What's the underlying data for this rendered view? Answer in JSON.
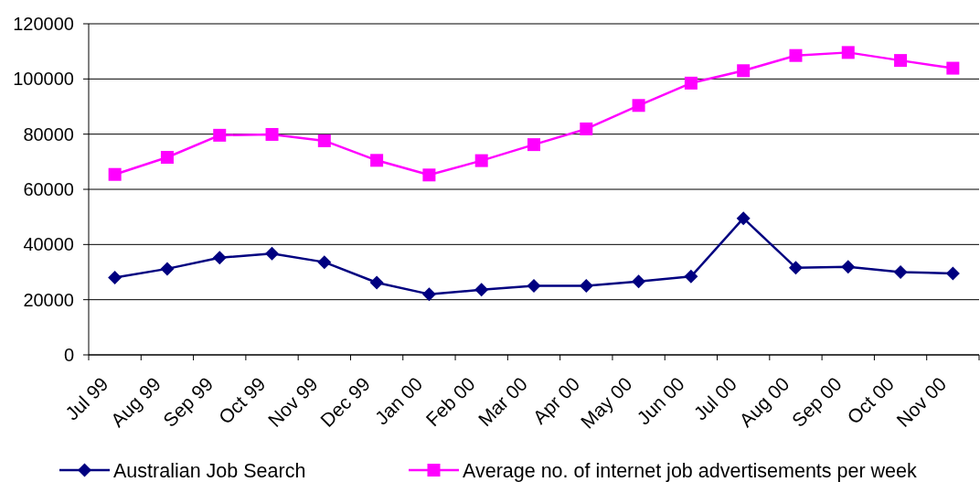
{
  "chart_data": {
    "type": "line",
    "categories": [
      "Jul 99",
      "Aug 99",
      "Sep 99",
      "Oct 99",
      "Nov 99",
      "Dec 99",
      "Jan 00",
      "Feb 00",
      "Mar 00",
      "Apr 00",
      "May 00",
      "Jun 00",
      "Jul 00",
      "Aug 00",
      "Sep 00",
      "Oct 00",
      "Nov 00"
    ],
    "series": [
      {
        "name": "Australian Job Search",
        "color": "#000080",
        "marker": "diamond",
        "values": [
          28000,
          31200,
          35200,
          36700,
          33600,
          26200,
          22000,
          23600,
          25000,
          25000,
          26600,
          28400,
          49500,
          31600,
          31900,
          30000,
          29500
        ]
      },
      {
        "name": "Average no. of internet job advertisements per week",
        "color": "#ff00ff",
        "marker": "square",
        "values": [
          65400,
          71600,
          79600,
          79900,
          77600,
          70500,
          65200,
          70400,
          76200,
          81900,
          90400,
          98500,
          103000,
          108500,
          109600,
          106700,
          103900
        ]
      }
    ],
    "ylim": [
      0,
      120000
    ],
    "yticks": [
      0,
      20000,
      40000,
      60000,
      80000,
      100000,
      120000
    ],
    "grid": "y",
    "legend": "bottom"
  }
}
